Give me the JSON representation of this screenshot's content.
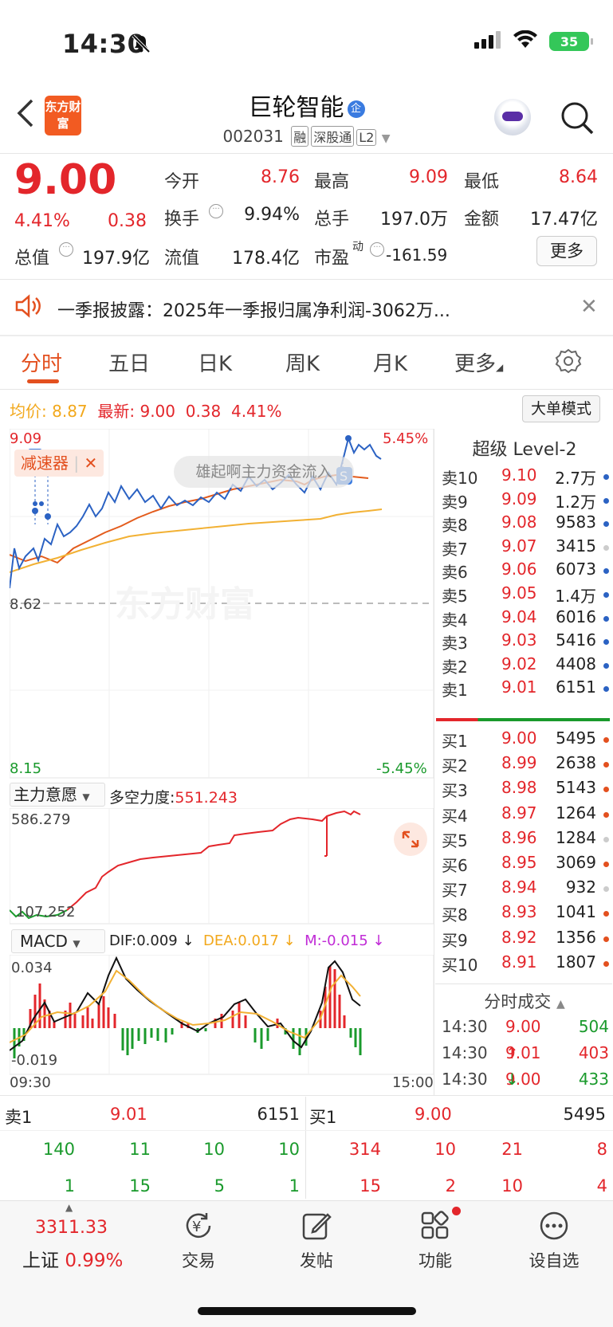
{
  "status": {
    "time": "14:30",
    "battery": "35"
  },
  "header": {
    "logo": "东方财富",
    "title": "巨轮智能",
    "title_badge": "企",
    "code": "002031",
    "tags": [
      "融",
      "深股通",
      "L2"
    ]
  },
  "quote": {
    "price": "9.00",
    "pct": "4.41%",
    "change": "0.38",
    "open_label": "今开",
    "open": "8.76",
    "high_label": "最高",
    "high": "9.09",
    "low_label": "最低",
    "low": "8.64",
    "turnover_label": "换手",
    "turnover": "9.94%",
    "volume_label": "总手",
    "volume": "197.0万",
    "amount_label": "金额",
    "amount": "17.47亿",
    "mcap_label": "总值",
    "mcap": "197.9亿",
    "float_label": "流值",
    "float": "178.4亿",
    "pe_label": "市盈",
    "pe_sup": "动",
    "pe": "-161.59",
    "more": "更多"
  },
  "news": {
    "text": "一季报披露：2025年一季报归属净利润-3062万..."
  },
  "tabs": [
    {
      "label": "分时"
    },
    {
      "label": "五日"
    },
    {
      "label": "日K"
    },
    {
      "label": "周K"
    },
    {
      "label": "月K"
    },
    {
      "label": "更多"
    }
  ],
  "chart": {
    "avg_label": "均价:",
    "avg": "8.87",
    "latest_label": "最新:",
    "latest": "9.00",
    "latest_change": "0.38",
    "latest_pct": "4.41%",
    "big_order_mode": "大单模式",
    "y_top": "9.09",
    "y_mid": "8.62",
    "y_bottom": "8.15",
    "pct_top": "5.45%",
    "pct_bottom": "-5.45%",
    "decel": "减速器",
    "overlay": "雄起啊主力资金流入",
    "watermark": "东方财富",
    "signal": "S",
    "colors": {
      "price": "#2b62c3",
      "avg": "#f2b134",
      "main": "#e35b1c"
    }
  },
  "intent": {
    "label": "主力意愿",
    "power_label": "多空力度:",
    "power": "551.243",
    "top": "586.279",
    "bottom": "107.252"
  },
  "macd": {
    "label": "MACD",
    "dif": "DIF:0.009 ↓",
    "dea": "DEA:0.017 ↓",
    "m": "M:-0.015 ↓",
    "top": "0.034",
    "bottom": "-0.019",
    "start_time": "09:30",
    "end_time": "15:00"
  },
  "orderbook": {
    "title": "超级 Level-2",
    "asks": [
      {
        "label": "卖10",
        "price": "9.10",
        "vol": "2.7万",
        "dot": "#2b62c3"
      },
      {
        "label": "卖9",
        "price": "9.09",
        "vol": "1.2万",
        "dot": "#2b62c3"
      },
      {
        "label": "卖8",
        "price": "9.08",
        "vol": "9583",
        "dot": "#2b62c3"
      },
      {
        "label": "卖7",
        "price": "9.07",
        "vol": "3415",
        "dot": "#cccccc"
      },
      {
        "label": "卖6",
        "price": "9.06",
        "vol": "6073",
        "dot": "#2b62c3"
      },
      {
        "label": "卖5",
        "price": "9.05",
        "vol": "1.4万",
        "dot": "#2b62c3"
      },
      {
        "label": "卖4",
        "price": "9.04",
        "vol": "6016",
        "dot": "#2b62c3"
      },
      {
        "label": "卖3",
        "price": "9.03",
        "vol": "5416",
        "dot": "#2b62c3"
      },
      {
        "label": "卖2",
        "price": "9.02",
        "vol": "4408",
        "dot": "#2b62c3"
      },
      {
        "label": "卖1",
        "price": "9.01",
        "vol": "6151",
        "dot": "#2b62c3"
      }
    ],
    "bids": [
      {
        "label": "买1",
        "price": "9.00",
        "vol": "5495",
        "dot": "#e3501f"
      },
      {
        "label": "买2",
        "price": "8.99",
        "vol": "2638",
        "dot": "#e3501f"
      },
      {
        "label": "买3",
        "price": "8.98",
        "vol": "5143",
        "dot": "#e3501f"
      },
      {
        "label": "买4",
        "price": "8.97",
        "vol": "1264",
        "dot": "#e3501f"
      },
      {
        "label": "买5",
        "price": "8.96",
        "vol": "1284",
        "dot": "#cccccc"
      },
      {
        "label": "买6",
        "price": "8.95",
        "vol": "3069",
        "dot": "#e3501f"
      },
      {
        "label": "买7",
        "price": "8.94",
        "vol": "932",
        "dot": "#cccccc"
      },
      {
        "label": "买8",
        "price": "8.93",
        "vol": "1041",
        "dot": "#e3501f"
      },
      {
        "label": "买9",
        "price": "8.92",
        "vol": "1356",
        "dot": "#e3501f"
      },
      {
        "label": "买10",
        "price": "8.91",
        "vol": "1807",
        "dot": "#e3501f"
      }
    ],
    "ticks_title": "分时成交",
    "ticks": [
      {
        "time": "14:30",
        "price": "9.00",
        "dir": "",
        "vol": "504",
        "vol_color": "green"
      },
      {
        "time": "14:30",
        "price": "9.01",
        "dir": "↑",
        "vol": "403",
        "vol_color": "red"
      },
      {
        "time": "14:30",
        "price": "9.00",
        "dir": "↓",
        "vol": "433",
        "vol_color": "green"
      }
    ]
  },
  "book_summary": {
    "sell_label": "卖1",
    "sell_price": "9.01",
    "sell_vol": "6151",
    "buy_label": "买1",
    "buy_price": "9.00",
    "buy_vol": "5495",
    "sell_row1": [
      "140",
      "11",
      "10",
      "10"
    ],
    "sell_row2": [
      "1",
      "15",
      "5",
      "1"
    ],
    "buy_row1": [
      "314",
      "10",
      "21",
      "8"
    ],
    "buy_row2": [
      "15",
      "2",
      "10",
      "4"
    ]
  },
  "nav": {
    "index_value": "3311.33",
    "index_name": "上证",
    "index_pct": "0.99%",
    "items": [
      {
        "label": "交易"
      },
      {
        "label": "发帖"
      },
      {
        "label": "功能"
      },
      {
        "label": "设自选"
      }
    ]
  }
}
